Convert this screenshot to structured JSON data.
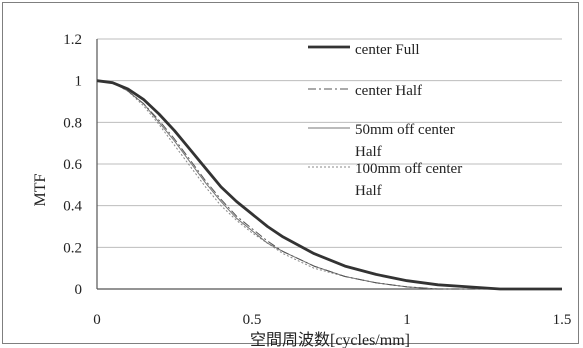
{
  "chart_data": {
    "type": "line",
    "title": "",
    "xlabel": "空間周波数[cycles/mm]",
    "ylabel": "MTF",
    "xlim": [
      0,
      1.5
    ],
    "ylim": [
      0,
      1.2
    ],
    "x_ticks": [
      "0",
      "0.5",
      "1",
      "1.5"
    ],
    "y_ticks": [
      "0",
      "0.2",
      "0.4",
      "0.6",
      "0.8",
      "1",
      "1.2"
    ],
    "grid": "horizontal",
    "legend_position": "upper-right",
    "series": [
      {
        "name": "center Full",
        "style": "solid-thick",
        "color": "#333333",
        "x": [
          0,
          0.05,
          0.1,
          0.15,
          0.2,
          0.25,
          0.3,
          0.35,
          0.4,
          0.45,
          0.5,
          0.55,
          0.6,
          0.7,
          0.8,
          0.9,
          1.0,
          1.1,
          1.2,
          1.3,
          1.4,
          1.5
        ],
        "y": [
          1.0,
          0.99,
          0.96,
          0.91,
          0.84,
          0.76,
          0.67,
          0.58,
          0.49,
          0.42,
          0.36,
          0.3,
          0.25,
          0.17,
          0.11,
          0.07,
          0.04,
          0.02,
          0.01,
          0.0,
          0.0,
          0.0
        ]
      },
      {
        "name": "center Half",
        "style": "dash-dot",
        "color": "#555555",
        "x": [
          0,
          0.05,
          0.1,
          0.15,
          0.2,
          0.25,
          0.3,
          0.35,
          0.4,
          0.45,
          0.5,
          0.55,
          0.6,
          0.7,
          0.8,
          0.9,
          1.0,
          1.1,
          1.2,
          1.3,
          1.4,
          1.5
        ],
        "y": [
          1.0,
          0.99,
          0.95,
          0.89,
          0.81,
          0.72,
          0.62,
          0.52,
          0.43,
          0.35,
          0.29,
          0.23,
          0.18,
          0.11,
          0.06,
          0.03,
          0.01,
          0.0,
          0.0,
          0.0,
          0.0,
          0.0
        ]
      },
      {
        "name": "50mm off center Half",
        "style": "solid-thin",
        "color": "#777777",
        "x": [
          0,
          0.05,
          0.1,
          0.15,
          0.2,
          0.25,
          0.3,
          0.35,
          0.4,
          0.45,
          0.5,
          0.55,
          0.6,
          0.7,
          0.8,
          0.9,
          1.0,
          1.1,
          1.2,
          1.3,
          1.4,
          1.5
        ],
        "y": [
          1.0,
          0.99,
          0.95,
          0.89,
          0.8,
          0.71,
          0.61,
          0.51,
          0.42,
          0.34,
          0.28,
          0.22,
          0.18,
          0.11,
          0.06,
          0.03,
          0.01,
          0.0,
          0.0,
          0.0,
          0.0,
          0.0
        ]
      },
      {
        "name": "100mm off center Half",
        "style": "dotted",
        "color": "#888888",
        "x": [
          0,
          0.05,
          0.1,
          0.15,
          0.2,
          0.25,
          0.3,
          0.35,
          0.4,
          0.45,
          0.5,
          0.55,
          0.6,
          0.7,
          0.8,
          0.9,
          1.0,
          1.1,
          1.2,
          1.3,
          1.4,
          1.5
        ],
        "y": [
          1.0,
          0.99,
          0.95,
          0.88,
          0.79,
          0.69,
          0.59,
          0.49,
          0.4,
          0.33,
          0.27,
          0.22,
          0.17,
          0.1,
          0.06,
          0.03,
          0.01,
          0.0,
          0.0,
          0.0,
          0.0,
          0.0
        ]
      }
    ]
  }
}
